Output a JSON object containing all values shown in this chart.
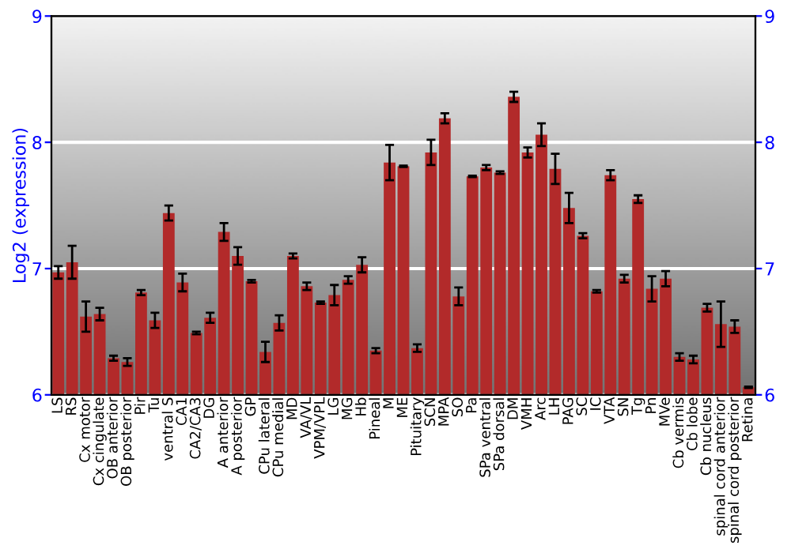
{
  "chart_data": {
    "type": "bar",
    "ylabel": "Log2 (expression)",
    "categories": [
      "LS",
      "RS",
      "Cx motor",
      "Cx cingulate",
      "OB anterior",
      "OB posterior",
      "Pir",
      "Tu",
      "ventral S",
      "CA1",
      "CA2/CA3",
      "DG",
      "A anterior",
      "A posterior",
      "GP",
      "CPu lateral",
      "CPu medial",
      "MD",
      "VA/VL",
      "VPM/VPL",
      "LG",
      "MG",
      "Hb",
      "Pineal",
      "M",
      "ME",
      "Pituitary",
      "SCN",
      "MPA",
      "SO",
      "Pa",
      "SPa ventral",
      "SPa dorsal",
      "DM",
      "VMH",
      "Arc",
      "LH",
      "PAG",
      "SC",
      "IC",
      "VTA",
      "SN",
      "Tg",
      "Pn",
      "MVe",
      "Cb vermis",
      "Cb lobe",
      "Cb nucleus",
      "spinal cord anterior",
      "spinal cord posterior",
      "Retina"
    ],
    "values": [
      6.97,
      7.05,
      6.62,
      6.64,
      6.29,
      6.26,
      6.81,
      6.59,
      7.44,
      6.89,
      6.49,
      6.61,
      7.29,
      7.1,
      6.9,
      6.34,
      6.57,
      7.1,
      6.86,
      6.73,
      6.79,
      6.91,
      7.03,
      6.35,
      7.84,
      7.81,
      6.37,
      7.92,
      8.19,
      6.78,
      7.73,
      7.8,
      7.76,
      8.36,
      7.92,
      8.06,
      7.79,
      7.48,
      7.26,
      6.82,
      7.74,
      6.92,
      7.55,
      6.84,
      6.92,
      6.3,
      6.28,
      6.69,
      6.56,
      6.54,
      6.06
    ],
    "errors": [
      0.05,
      0.13,
      0.12,
      0.05,
      0.02,
      0.03,
      0.02,
      0.06,
      0.06,
      0.07,
      0.01,
      0.04,
      0.07,
      0.07,
      0.01,
      0.08,
      0.06,
      0.02,
      0.03,
      0.01,
      0.08,
      0.03,
      0.06,
      0.02,
      0.14,
      0.005,
      0.03,
      0.1,
      0.04,
      0.07,
      0.005,
      0.02,
      0.01,
      0.04,
      0.04,
      0.09,
      0.12,
      0.12,
      0.02,
      0.01,
      0.04,
      0.03,
      0.03,
      0.1,
      0.06,
      0.03,
      0.03,
      0.03,
      0.18,
      0.05,
      0.005
    ],
    "color": "#b22a2a",
    "ylim": [
      6,
      9
    ],
    "yticks": [
      6,
      7,
      8,
      9
    ],
    "y2lim": [
      6,
      9
    ],
    "y2ticks": [
      6,
      7,
      8,
      9
    ],
    "grid": "y",
    "legend": false
  }
}
